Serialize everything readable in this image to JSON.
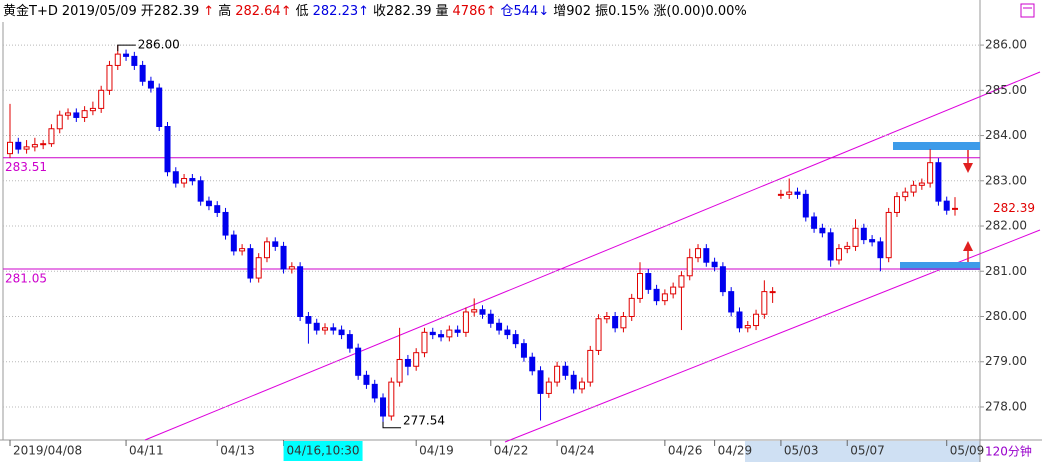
{
  "chart_data": {
    "type": "candlestick",
    "title_items": [
      {
        "text": "黄金T+D",
        "color": "#000000"
      },
      {
        "text": "2019/05/09",
        "color": "#000000"
      },
      {
        "text": "开282.39",
        "color": "#000000"
      },
      {
        "text": "↑",
        "color": "#e00000"
      },
      {
        "text": "高",
        "color": "#000000"
      },
      {
        "text": "282.64↑",
        "color": "#e00000"
      },
      {
        "text": "低",
        "color": "#000000"
      },
      {
        "text": "282.23↑",
        "color": "#0000e0"
      },
      {
        "text": "收282.39",
        "color": "#000000"
      },
      {
        "text": "量",
        "color": "#000000"
      },
      {
        "text": "4786↑",
        "color": "#e00000"
      },
      {
        "text": "仓544↓",
        "color": "#0000e0"
      },
      {
        "text": "增902",
        "color": "#000000"
      },
      {
        "text": "振0.15%",
        "color": "#000000"
      },
      {
        "text": "涨(0.00)0.00%",
        "color": "#000000"
      }
    ],
    "period": "120分钟",
    "categories": [
      "2019/04/08",
      null,
      null,
      null,
      null,
      null,
      null,
      null,
      null,
      null,
      null,
      null,
      null,
      null,
      "04/11",
      null,
      null,
      null,
      null,
      null,
      null,
      null,
      null,
      null,
      null,
      "04/13",
      null,
      null,
      null,
      null,
      null,
      null,
      null,
      "04/16,10:30",
      null,
      null,
      null,
      null,
      null,
      null,
      null,
      null,
      null,
      null,
      null,
      null,
      null,
      null,
      null,
      "04/19",
      null,
      null,
      null,
      null,
      null,
      null,
      null,
      null,
      "04/22",
      null,
      null,
      null,
      null,
      null,
      null,
      null,
      "04/24",
      null,
      null,
      null,
      null,
      null,
      null,
      null,
      null,
      null,
      null,
      null,
      null,
      "04/26",
      null,
      null,
      null,
      null,
      null,
      "04/29",
      null,
      null,
      null,
      null,
      null,
      null,
      null,
      "05/03",
      null,
      null,
      null,
      null,
      null,
      null,
      null,
      "05/07",
      null,
      null,
      null,
      null,
      null,
      null,
      null,
      null,
      null,
      null,
      null,
      "05/09",
      null
    ],
    "highlight": "04/16,10:30",
    "open": [
      283.6,
      283.85,
      283.7,
      283.75,
      283.8,
      283.82,
      284.15,
      284.45,
      284.5,
      284.4,
      284.55,
      284.6,
      285,
      285.55,
      285.8,
      285.75,
      285.55,
      285.2,
      285.05,
      284.2,
      283.2,
      282.95,
      283.05,
      283,
      282.55,
      282.45,
      282.3,
      281.8,
      281.45,
      281.5,
      280.85,
      281.3,
      281.65,
      281.55,
      281.05,
      281.1,
      280,
      279.85,
      279.7,
      279.75,
      279.7,
      279.6,
      279.3,
      278.7,
      278.5,
      278.2,
      277.8,
      278.55,
      279.05,
      278.9,
      279.2,
      279.65,
      279.6,
      279.55,
      279.7,
      279.65,
      280.1,
      280.15,
      280.05,
      279.85,
      279.7,
      279.6,
      279.4,
      279.1,
      278.8,
      278.3,
      278.55,
      278.9,
      278.7,
      278.4,
      278.55,
      279.25,
      279.95,
      280,
      279.75,
      280,
      280.4,
      280.95,
      280.6,
      280.35,
      280.5,
      280.65,
      280.9,
      281.3,
      281.5,
      281.2,
      281.1,
      280.55,
      280.1,
      279.75,
      279.8,
      280.05,
      280.55,
      282.7,
      282.7,
      282.75,
      282.7,
      282.2,
      281.95,
      281.85,
      281.25,
      281.5,
      281.55,
      281.95,
      281.7,
      281.65,
      281.3,
      282.3,
      282.65,
      282.75,
      282.9,
      282.95,
      283.4,
      282.55,
      282.39
    ],
    "high": [
      284.7,
      283.95,
      283.9,
      283.95,
      283.9,
      284.25,
      284.55,
      284.6,
      284.6,
      284.65,
      284.75,
      285.1,
      285.65,
      286,
      285.9,
      285.85,
      285.65,
      285.3,
      285.15,
      284.3,
      283.3,
      283.15,
      283.15,
      283.1,
      282.65,
      282.55,
      282.4,
      281.9,
      281.6,
      281.6,
      281.4,
      281.75,
      281.75,
      281.65,
      281.2,
      281.2,
      280.1,
      279.95,
      279.85,
      279.85,
      279.8,
      279.7,
      279.4,
      278.8,
      278.6,
      278.3,
      278.65,
      279.75,
      279.15,
      279.3,
      279.75,
      279.75,
      279.7,
      279.8,
      279.8,
      280.2,
      280.4,
      280.25,
      280.15,
      279.95,
      279.8,
      279.7,
      279.5,
      279.2,
      278.9,
      278.65,
      279,
      279,
      278.8,
      278.65,
      279.35,
      280.05,
      280.1,
      280.1,
      280.1,
      280.5,
      281.2,
      281.05,
      280.7,
      280.6,
      280.75,
      281,
      281.5,
      281.6,
      281.6,
      281.3,
      281.2,
      280.65,
      280.2,
      279.9,
      280.15,
      280.8,
      280.65,
      282.8,
      283.05,
      282.85,
      282.8,
      282.3,
      282.05,
      281.95,
      281.6,
      281.65,
      282.15,
      282.05,
      281.8,
      281.75,
      282.4,
      282.75,
      282.85,
      283,
      283.05,
      283.7,
      283.5,
      282.65,
      282.64
    ],
    "low": [
      283.5,
      283.6,
      283.6,
      283.65,
      283.7,
      283.75,
      284.05,
      284.35,
      284.3,
      284.3,
      284.45,
      284.5,
      284.9,
      285.45,
      285.65,
      285.45,
      285.1,
      284.95,
      284.1,
      283.1,
      282.85,
      282.85,
      282.9,
      282.45,
      282.35,
      282.2,
      281.7,
      281.35,
      281.35,
      280.75,
      280.75,
      281.2,
      281.45,
      280.95,
      280.95,
      279.9,
      279.4,
      279.6,
      279.6,
      279.6,
      279.5,
      279.2,
      278.6,
      278.4,
      278.1,
      277.54,
      277.7,
      278.45,
      278.7,
      278.8,
      279.1,
      279.5,
      279.45,
      279.45,
      279.55,
      279.55,
      280,
      279.95,
      279.75,
      279.6,
      279.5,
      279.3,
      279,
      278.7,
      277.7,
      278.2,
      278.45,
      278.6,
      278.3,
      278.3,
      278.45,
      279.15,
      279.85,
      279.65,
      279.65,
      279.9,
      280.3,
      280.5,
      280.25,
      280.25,
      280.4,
      279.7,
      280.8,
      281.2,
      281.1,
      281,
      280.45,
      280,
      279.65,
      279.65,
      279.7,
      279.95,
      280.3,
      282.6,
      282.6,
      282.6,
      282.1,
      281.85,
      281.75,
      281.1,
      281.15,
      281.4,
      281.45,
      281.6,
      281.55,
      281,
      281.2,
      282.2,
      282.55,
      282.65,
      282.8,
      282.85,
      282.45,
      282.25,
      282.23
    ],
    "close": [
      283.85,
      283.7,
      283.75,
      283.8,
      283.82,
      284.15,
      284.45,
      284.5,
      284.4,
      284.55,
      284.6,
      285,
      285.55,
      285.8,
      285.75,
      285.55,
      285.2,
      285.05,
      284.2,
      283.2,
      282.95,
      283.05,
      283,
      282.55,
      282.45,
      282.3,
      281.8,
      281.45,
      281.5,
      280.85,
      281.3,
      281.65,
      281.55,
      281.05,
      281.1,
      280,
      279.85,
      279.7,
      279.75,
      279.7,
      279.6,
      279.3,
      278.7,
      278.5,
      278.2,
      277.8,
      278.55,
      279.05,
      278.9,
      279.2,
      279.65,
      279.6,
      279.55,
      279.7,
      279.65,
      280.1,
      280.15,
      280.05,
      279.85,
      279.7,
      279.6,
      279.4,
      279.1,
      278.8,
      278.3,
      278.55,
      278.9,
      278.7,
      278.4,
      278.55,
      279.25,
      279.95,
      280,
      279.75,
      280,
      280.4,
      280.95,
      280.6,
      280.35,
      280.5,
      280.65,
      280.9,
      281.3,
      281.5,
      281.2,
      281.1,
      280.55,
      280.1,
      279.75,
      279.8,
      280.05,
      280.55,
      280.55,
      282.7,
      282.75,
      282.7,
      282.2,
      281.95,
      281.85,
      281.25,
      281.5,
      281.55,
      281.95,
      281.7,
      281.65,
      281.3,
      282.3,
      282.65,
      282.75,
      282.9,
      282.95,
      283.4,
      282.55,
      282.35,
      282.39
    ],
    "up_color": "#e00000",
    "down_color": "#0000ee",
    "high_label": "286.00",
    "low_label": "277.54",
    "hlines": [
      283.51,
      281.05
    ],
    "hline_color": "#cc00cc",
    "ylim": [
      277.27,
      286.51
    ],
    "yticks": [
      {
        "value": 278,
        "label": "278.00"
      },
      {
        "value": 279,
        "label": "279.00"
      },
      {
        "value": 280,
        "label": "280.00"
      },
      {
        "value": 281,
        "label": "281.00"
      },
      {
        "value": 282,
        "label": "282.00"
      },
      {
        "value": 283,
        "label": "283.00"
      },
      {
        "value": 284,
        "label": "284.00"
      },
      {
        "value": 285,
        "label": "285.00"
      },
      {
        "value": 286,
        "label": "286.00"
      }
    ],
    "grid": true
  }
}
